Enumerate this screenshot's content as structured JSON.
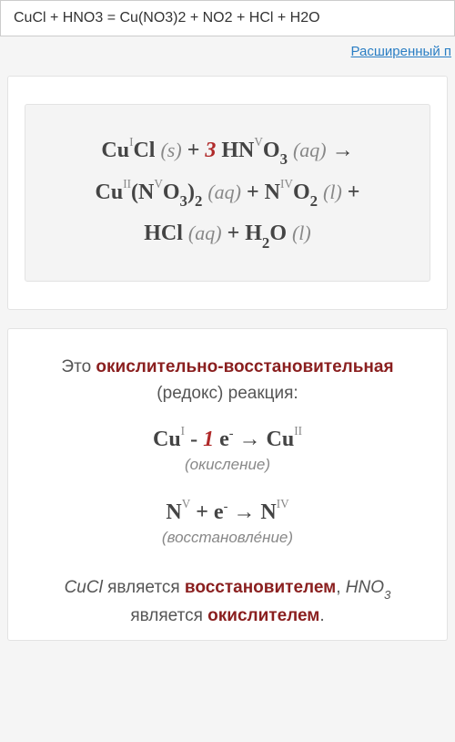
{
  "input": {
    "value": "CuCl + HNO3 = Cu(NO3)2 + NO2 + HCl + H2O"
  },
  "links": {
    "advanced": "Расширенный п"
  },
  "equation": {
    "line1": {
      "r1_el": "Cu",
      "r1_ox": "I",
      "r1_el2": "Cl",
      "r1_state": "(s)",
      "plus1": " + ",
      "coef": "3",
      "r2_h": " HN",
      "r2_ox": "V",
      "r2_o": "O",
      "r2_sub": "3",
      "r2_state": "(aq)",
      "arrow": "  →"
    },
    "line2": {
      "p1_el": "Cu",
      "p1_ox": "II",
      "p1_open": "(N",
      "p1_nox": "V",
      "p1_o": "O",
      "p1_osub": "3",
      "p1_close": ")",
      "p1_sub2": "2",
      "p1_state": "(aq)",
      "plus2": " + ",
      "p2_n": "N",
      "p2_ox": "IV",
      "p2_o": "O",
      "p2_sub": "2",
      "p2_state": "(l)",
      "plus3": " +"
    },
    "line3": {
      "p3": "HCl",
      "p3_state": "(aq)",
      "plus4": " + ",
      "p4_h": "H",
      "p4_hsub": "2",
      "p4_o": "O",
      "p4_state": "(l)"
    }
  },
  "descr": {
    "pre": "Это ",
    "redox": "окислительно-восстановительная",
    "post": " (редокс) реакция:"
  },
  "half1": {
    "l_el": "Cu",
    "l_ox": "I",
    "minus": " - ",
    "one": "1",
    "e": " e",
    "eminus": "-",
    "arrow": "  →  ",
    "r_el": "Cu",
    "r_ox": "II",
    "label": "(окисление)"
  },
  "half2": {
    "l_el": "N",
    "l_ox": "V",
    "plus": " + ",
    "e": "e",
    "eminus": "-",
    "arrow": "  →  ",
    "r_el": "N",
    "r_ox": "IV",
    "label": "(восстановле́ние)"
  },
  "conclusion": {
    "s1": "CuCl",
    "t1": " является ",
    "r1": "восстановителем",
    "c1": ", ",
    "s2": "HNO",
    "s2sub": "3",
    "t2": " является ",
    "r2": "окислителем",
    "c2": "."
  }
}
